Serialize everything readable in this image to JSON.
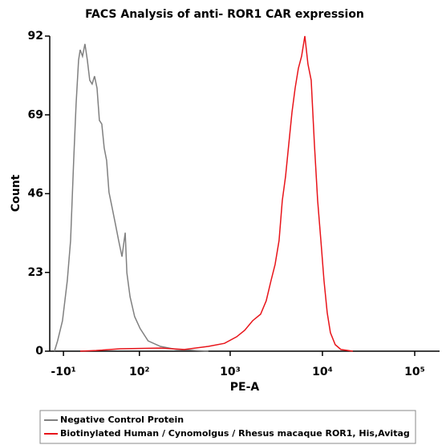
{
  "chart_data": {
    "type": "line",
    "title": "FACS Analysis of anti- ROR1 CAR expression",
    "x_label": "PE-A",
    "y_label": "Count",
    "xscale": "logicle",
    "xlim": [
      -25,
      186000
    ],
    "xticks": [
      {
        "value": -10,
        "label": "-10¹"
      },
      {
        "value": 100,
        "label": "10²"
      },
      {
        "value": 1000,
        "label": "10³"
      },
      {
        "value": 10000,
        "label": "10⁴"
      },
      {
        "value": 100000,
        "label": "10⁵"
      }
    ],
    "ylim": [
      0,
      92
    ],
    "yticks": [
      0,
      23,
      46,
      69,
      92
    ],
    "legend": "bottom",
    "series": [
      {
        "name": "Negative Control Protein",
        "color": "#808080",
        "x": [
          -19.6,
          -16.2,
          -11.0,
          -6.1,
          -2.8,
          0.3,
          2.7,
          5.2,
          6.8,
          9.2,
          11.7,
          14.2,
          16.8,
          19.4,
          22.1,
          25.0,
          27.8,
          30.8,
          33.9,
          37.1,
          40.4,
          45.2,
          50.2,
          55.4,
          61.3,
          67.4,
          70.7,
          77.4,
          87.9,
          102,
          126,
          173,
          260,
          580
        ],
        "values": [
          0,
          3.0,
          8.9,
          20.6,
          32.3,
          55.7,
          72.1,
          85.0,
          88.0,
          86.1,
          89.7,
          85.0,
          79.1,
          78.0,
          80.3,
          76.8,
          67.4,
          66.3,
          59.3,
          55.7,
          46.4,
          41.7,
          37.0,
          32.3,
          27.6,
          34.6,
          22.9,
          15.9,
          10.1,
          6.6,
          3.0,
          1.4,
          0.5,
          0
        ]
      },
      {
        "name": "Biotinylated Human / Cynomolgus / Rhesus macaque ROR1, His,Avitag",
        "color": "#e8141a",
        "x": [
          6.8,
          24.0,
          58.2,
          173,
          318,
          580,
          868,
          1175,
          1436,
          1752,
          2137,
          2458,
          2772,
          3067,
          3388,
          3673,
          3983,
          4316,
          4680,
          5060,
          5487,
          5944,
          6445,
          6969,
          7555,
          8185,
          8872,
          9620,
          10400,
          11268,
          12200,
          13760,
          15840,
          21360
        ],
        "values": [
          0,
          0.2,
          0.7,
          0.9,
          0.5,
          1.4,
          2.3,
          4.2,
          6.1,
          8.9,
          10.8,
          14.7,
          20.6,
          25.3,
          32.3,
          44.0,
          51.0,
          60.4,
          69.8,
          76.8,
          82.6,
          86.1,
          92.0,
          83.8,
          79.1,
          60.4,
          44.0,
          32.3,
          20.6,
          11.2,
          5.4,
          1.9,
          0.5,
          0
        ]
      }
    ]
  }
}
